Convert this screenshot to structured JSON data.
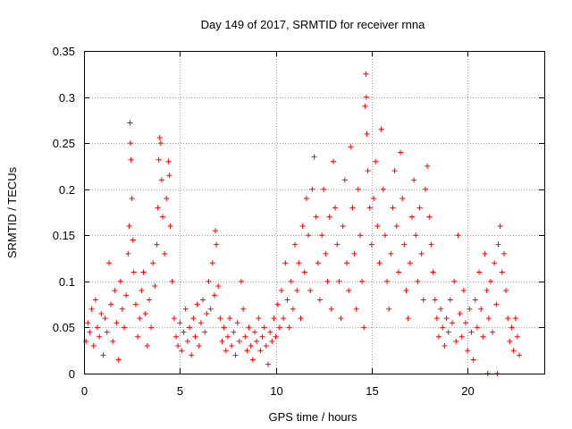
{
  "chart_data": {
    "type": "scatter",
    "title": "Day 149 of 2017, SRMTID for receiver rnna",
    "xlabel": "GPS time / hours",
    "ylabel": "SRMTID / TECUs",
    "xlim": [
      0,
      24
    ],
    "ylim": [
      0,
      0.35
    ],
    "xticks": [
      0,
      5,
      10,
      15,
      20
    ],
    "xtick_labels": [
      "0",
      "5",
      "10",
      "15",
      "20"
    ],
    "yticks": [
      0,
      0.05,
      0.1,
      0.15,
      0.2,
      0.25,
      0.3,
      0.35
    ],
    "ytick_labels": [
      "0",
      "0.05",
      "0.1",
      "0.15",
      "0.2",
      "0.25",
      "0.3",
      "0.35"
    ],
    "grid": true,
    "marker": "plus",
    "color": "#ff0000",
    "series": [
      {
        "name": "SRMTID",
        "points": [
          [
            0.1,
            0.035
          ],
          [
            0.2,
            0.055
          ],
          [
            0.3,
            0.045
          ],
          [
            0.4,
            0.07
          ],
          [
            0.5,
            0.03
          ],
          [
            0.6,
            0.08
          ],
          [
            0.7,
            0.05
          ],
          [
            0.8,
            0.04
          ],
          [
            0.9,
            0.065
          ],
          [
            1.0,
            0.02
          ],
          [
            1.1,
            0.06
          ],
          [
            1.2,
            0.045
          ],
          [
            1.3,
            0.12
          ],
          [
            1.4,
            0.075
          ],
          [
            1.5,
            0.035
          ],
          [
            1.6,
            0.09
          ],
          [
            1.7,
            0.055
          ],
          [
            1.8,
            0.015
          ],
          [
            1.9,
            0.1
          ],
          [
            2.0,
            0.07
          ],
          [
            2.1,
            0.05
          ],
          [
            2.2,
            0.085
          ],
          [
            2.3,
            0.13
          ],
          [
            2.35,
            0.16
          ],
          [
            2.4,
            0.272
          ],
          [
            2.42,
            0.25
          ],
          [
            2.45,
            0.232
          ],
          [
            2.5,
            0.19
          ],
          [
            2.55,
            0.145
          ],
          [
            2.6,
            0.11
          ],
          [
            2.7,
            0.075
          ],
          [
            2.8,
            0.04
          ],
          [
            2.9,
            0.06
          ],
          [
            3.0,
            0.09
          ],
          [
            3.1,
            0.11
          ],
          [
            3.2,
            0.065
          ],
          [
            3.3,
            0.03
          ],
          [
            3.4,
            0.08
          ],
          [
            3.5,
            0.05
          ],
          [
            3.6,
            0.12
          ],
          [
            3.7,
            0.095
          ],
          [
            3.8,
            0.14
          ],
          [
            3.85,
            0.18
          ],
          [
            3.9,
            0.232
          ],
          [
            3.95,
            0.256
          ],
          [
            4.0,
            0.25
          ],
          [
            4.05,
            0.21
          ],
          [
            4.1,
            0.17
          ],
          [
            4.2,
            0.13
          ],
          [
            4.3,
            0.19
          ],
          [
            4.4,
            0.23
          ],
          [
            4.45,
            0.215
          ],
          [
            4.5,
            0.16
          ],
          [
            4.6,
            0.1
          ],
          [
            4.7,
            0.06
          ],
          [
            4.8,
            0.04
          ],
          [
            4.9,
            0.03
          ],
          [
            5.0,
            0.055
          ],
          [
            5.1,
            0.025
          ],
          [
            5.2,
            0.045
          ],
          [
            5.3,
            0.07
          ],
          [
            5.4,
            0.035
          ],
          [
            5.5,
            0.05
          ],
          [
            5.6,
            0.02
          ],
          [
            5.7,
            0.06
          ],
          [
            5.8,
            0.04
          ],
          [
            5.9,
            0.075
          ],
          [
            6.0,
            0.03
          ],
          [
            6.1,
            0.055
          ],
          [
            6.2,
            0.08
          ],
          [
            6.3,
            0.045
          ],
          [
            6.4,
            0.065
          ],
          [
            6.5,
            0.1
          ],
          [
            6.6,
            0.07
          ],
          [
            6.7,
            0.12
          ],
          [
            6.8,
            0.085
          ],
          [
            6.85,
            0.155
          ],
          [
            6.9,
            0.14
          ],
          [
            7.0,
            0.095
          ],
          [
            7.1,
            0.06
          ],
          [
            7.2,
            0.035
          ],
          [
            7.3,
            0.05
          ],
          [
            7.4,
            0.025
          ],
          [
            7.5,
            0.04
          ],
          [
            7.6,
            0.06
          ],
          [
            7.7,
            0.03
          ],
          [
            7.8,
            0.045
          ],
          [
            7.9,
            0.02
          ],
          [
            8.0,
            0.055
          ],
          [
            8.1,
            0.035
          ],
          [
            8.2,
            0.1
          ],
          [
            8.3,
            0.07
          ],
          [
            8.4,
            0.04
          ],
          [
            8.5,
            0.025
          ],
          [
            8.6,
            0.05
          ],
          [
            8.7,
            0.03
          ],
          [
            8.8,
            0.015
          ],
          [
            8.9,
            0.045
          ],
          [
            9.0,
            0.035
          ],
          [
            9.1,
            0.06
          ],
          [
            9.2,
            0.025
          ],
          [
            9.3,
            0.04
          ],
          [
            9.4,
            0.05
          ],
          [
            9.5,
            0.03
          ],
          [
            9.6,
            0.01
          ],
          [
            9.7,
            0.045
          ],
          [
            9.8,
            0.035
          ],
          [
            9.9,
            0.06
          ],
          [
            10.0,
            0.04
          ],
          [
            10.1,
            0.075
          ],
          [
            10.2,
            0.05
          ],
          [
            10.3,
            0.09
          ],
          [
            10.4,
            0.06
          ],
          [
            10.5,
            0.12
          ],
          [
            10.6,
            0.08
          ],
          [
            10.7,
            0.05
          ],
          [
            10.8,
            0.1
          ],
          [
            10.9,
            0.07
          ],
          [
            11.0,
            0.14
          ],
          [
            11.1,
            0.09
          ],
          [
            11.2,
            0.12
          ],
          [
            11.3,
            0.06
          ],
          [
            11.4,
            0.16
          ],
          [
            11.5,
            0.11
          ],
          [
            11.6,
            0.19
          ],
          [
            11.7,
            0.15
          ],
          [
            11.8,
            0.09
          ],
          [
            11.9,
            0.2
          ],
          [
            12.0,
            0.235
          ],
          [
            12.1,
            0.17
          ],
          [
            12.2,
            0.12
          ],
          [
            12.3,
            0.08
          ],
          [
            12.4,
            0.15
          ],
          [
            12.5,
            0.2
          ],
          [
            12.6,
            0.13
          ],
          [
            12.7,
            0.1
          ],
          [
            12.8,
            0.17
          ],
          [
            12.9,
            0.07
          ],
          [
            13.0,
            0.23
          ],
          [
            13.1,
            0.18
          ],
          [
            13.2,
            0.14
          ],
          [
            13.3,
            0.1
          ],
          [
            13.4,
            0.06
          ],
          [
            13.5,
            0.16
          ],
          [
            13.6,
            0.21
          ],
          [
            13.7,
            0.12
          ],
          [
            13.8,
            0.09
          ],
          [
            13.9,
            0.246
          ],
          [
            14.0,
            0.18
          ],
          [
            14.1,
            0.13
          ],
          [
            14.2,
            0.07
          ],
          [
            14.3,
            0.2
          ],
          [
            14.4,
            0.15
          ],
          [
            14.5,
            0.1
          ],
          [
            14.6,
            0.05
          ],
          [
            14.65,
            0.29
          ],
          [
            14.7,
            0.325
          ],
          [
            14.72,
            0.3
          ],
          [
            14.75,
            0.26
          ],
          [
            14.8,
            0.22
          ],
          [
            14.9,
            0.18
          ],
          [
            15.0,
            0.14
          ],
          [
            15.1,
            0.19
          ],
          [
            15.2,
            0.23
          ],
          [
            15.3,
            0.16
          ],
          [
            15.4,
            0.12
          ],
          [
            15.5,
            0.265
          ],
          [
            15.6,
            0.2
          ],
          [
            15.7,
            0.15
          ],
          [
            15.8,
            0.1
          ],
          [
            15.9,
            0.07
          ],
          [
            16.0,
            0.13
          ],
          [
            16.1,
            0.18
          ],
          [
            16.2,
            0.22
          ],
          [
            16.3,
            0.16
          ],
          [
            16.4,
            0.11
          ],
          [
            16.5,
            0.24
          ],
          [
            16.6,
            0.19
          ],
          [
            16.7,
            0.14
          ],
          [
            16.8,
            0.09
          ],
          [
            16.9,
            0.06
          ],
          [
            17.0,
            0.12
          ],
          [
            17.1,
            0.17
          ],
          [
            17.2,
            0.21
          ],
          [
            17.3,
            0.15
          ],
          [
            17.4,
            0.1
          ],
          [
            17.5,
            0.18
          ],
          [
            17.6,
            0.13
          ],
          [
            17.7,
            0.08
          ],
          [
            17.8,
            0.2
          ],
          [
            17.9,
            0.225
          ],
          [
            18.0,
            0.17
          ],
          [
            18.1,
            0.14
          ],
          [
            18.2,
            0.11
          ],
          [
            18.3,
            0.08
          ],
          [
            18.4,
            0.06
          ],
          [
            18.5,
            0.04
          ],
          [
            18.6,
            0.07
          ],
          [
            18.7,
            0.05
          ],
          [
            18.8,
            0.03
          ],
          [
            18.9,
            0.06
          ],
          [
            19.0,
            0.045
          ],
          [
            19.1,
            0.08
          ],
          [
            19.2,
            0.055
          ],
          [
            19.3,
            0.1
          ],
          [
            19.4,
            0.035
          ],
          [
            19.5,
            0.15
          ],
          [
            19.6,
            0.065
          ],
          [
            19.7,
            0.04
          ],
          [
            19.8,
            0.09
          ],
          [
            19.9,
            0.055
          ],
          [
            20.0,
            0.025
          ],
          [
            20.1,
            0.07
          ],
          [
            20.2,
            0.045
          ],
          [
            20.3,
            0.015
          ],
          [
            20.4,
            0.08
          ],
          [
            20.5,
            0.05
          ],
          [
            20.6,
            0.11
          ],
          [
            20.7,
            0.07
          ],
          [
            20.8,
            0.04
          ],
          [
            20.9,
            0.13
          ],
          [
            21.0,
            0.09
          ],
          [
            21.05,
            0.0
          ],
          [
            21.1,
            0.06
          ],
          [
            21.2,
            0.1
          ],
          [
            21.3,
            0.045
          ],
          [
            21.4,
            0.12
          ],
          [
            21.5,
            0.075
          ],
          [
            21.55,
            0.0
          ],
          [
            21.6,
            0.14
          ],
          [
            21.7,
            0.16
          ],
          [
            21.8,
            0.11
          ],
          [
            21.9,
            0.13
          ],
          [
            22.0,
            0.09
          ],
          [
            22.1,
            0.06
          ],
          [
            22.2,
            0.035
          ],
          [
            22.3,
            0.05
          ],
          [
            22.4,
            0.025
          ],
          [
            22.5,
            0.06
          ],
          [
            22.6,
            0.04
          ],
          [
            22.7,
            0.02
          ]
        ]
      }
    ]
  }
}
